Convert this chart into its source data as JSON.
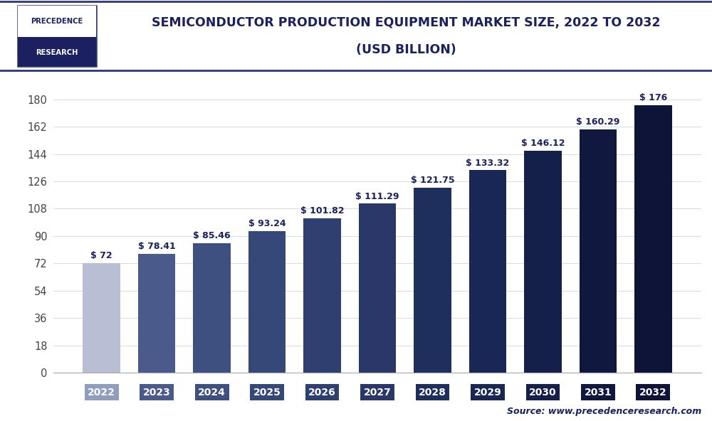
{
  "title_line1": "SEMICONDUCTOR PRODUCTION EQUIPMENT MARKET SIZE, 2022 TO 2032",
  "title_line2": "(USD BILLION)",
  "categories": [
    "2022",
    "2023",
    "2024",
    "2025",
    "2026",
    "2027",
    "2028",
    "2029",
    "2030",
    "2031",
    "2032"
  ],
  "values": [
    72,
    78.41,
    85.46,
    93.24,
    101.82,
    111.29,
    121.75,
    133.32,
    146.12,
    160.29,
    176
  ],
  "labels": [
    "$ 72",
    "$ 78.41",
    "$ 85.46",
    "$ 93.24",
    "$ 101.82",
    "$ 111.29",
    "$ 121.75",
    "$ 133.32",
    "$ 146.12",
    "$ 160.29",
    "$ 176"
  ],
  "bar_colors": [
    "#b8bfd4",
    "#4a5a8a",
    "#3d5080",
    "#364878",
    "#2f4070",
    "#293868",
    "#1e2f5e",
    "#192756",
    "#141f4a",
    "#101840",
    "#0d1438"
  ],
  "tick_label_colors": [
    "#8e9dc0",
    "#4a5a8a",
    "#3d5080",
    "#364878",
    "#2f4070",
    "#293868",
    "#1e2f5e",
    "#192756",
    "#141f4a",
    "#101840",
    "#0d1438"
  ],
  "ylim": [
    0,
    190
  ],
  "yticks": [
    0,
    18,
    36,
    54,
    72,
    90,
    108,
    126,
    144,
    162,
    180
  ],
  "background_color": "#ffffff",
  "plot_bg_color": "#ffffff",
  "grid_color": "#d8dce8",
  "title_color": "#1a2060",
  "source_text": "Source: www.precedenceresearch.com",
  "label_fontsize": 9,
  "title_fontsize": 12.5,
  "ytick_fontsize": 10.5,
  "xtick_fontsize": 10,
  "header_border_color": "#2d3580"
}
